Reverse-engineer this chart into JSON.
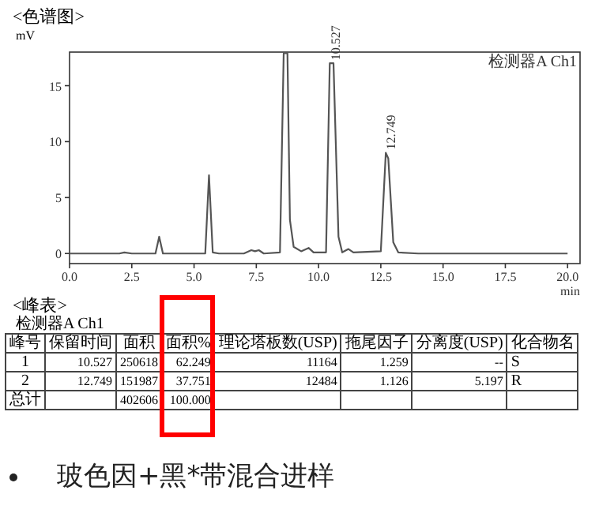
{
  "chart_data": [
    {
      "type": "line",
      "title": "<色谱图>",
      "ylabel": "mV",
      "xlabel": "min",
      "grid": false,
      "marker": "none",
      "line_style": "solid",
      "x": [
        0,
        2.0,
        2.2,
        2.5,
        3.45,
        3.6,
        3.75,
        5.45,
        5.6,
        5.75,
        6.0,
        7.0,
        7.3,
        7.45,
        7.6,
        7.8,
        8.45,
        8.6,
        8.75,
        8.85,
        9.0,
        9.3,
        9.6,
        9.8,
        10.3,
        10.45,
        10.6,
        10.8,
        10.95,
        11.2,
        11.4,
        12.5,
        12.7,
        12.8,
        13.0,
        13.2,
        14.0,
        20.0
      ],
      "series": [
        {
          "color": "#555555",
          "values": [
            0,
            0,
            0.1,
            0,
            0,
            1.5,
            0,
            0,
            7.0,
            0.1,
            0,
            0,
            0.3,
            0.2,
            0.3,
            0,
            0.1,
            17.9,
            17.9,
            3,
            0.6,
            0.2,
            0.5,
            0.1,
            0.1,
            17.0,
            17.0,
            1.5,
            0.1,
            0.4,
            0.1,
            0.2,
            9.0,
            8.5,
            1.0,
            0.1,
            0,
            0
          ]
        }
      ],
      "xlim": [
        0,
        20.5
      ],
      "ylim": [
        -0.9,
        18
      ],
      "xticks": [
        {
          "value": 0,
          "label": "0.0"
        },
        {
          "value": 2.5,
          "label": "2.5"
        },
        {
          "value": 5,
          "label": "5.0"
        },
        {
          "value": 7.5,
          "label": "7.5"
        },
        {
          "value": 10,
          "label": "10.0"
        },
        {
          "value": 12.5,
          "label": "12.5"
        },
        {
          "value": 15,
          "label": "15.0"
        },
        {
          "value": 17.5,
          "label": "17.5"
        },
        {
          "value": 20,
          "label": "20.0"
        }
      ],
      "yticks": [
        0,
        5,
        10,
        15
      ],
      "annotations": [
        "检测器A Ch1",
        {
          "text": "10.527",
          "x": 10.527,
          "y": 17.0
        },
        {
          "text": "12.749",
          "x": 12.749,
          "y": 9.0
        }
      ]
    },
    {
      "type": "other",
      "title": "<峰表>",
      "subtitle": "检测器A Ch1",
      "categories": [
        "峰号",
        "保留时间",
        "面积",
        "面积%",
        "理论塔板数(USP)",
        "拖尾因子",
        "分离度(USP)",
        "化合物名"
      ],
      "cell_labels": [
        [
          "1",
          "10.527",
          "250618",
          "62.249",
          "11164",
          "1.259",
          "--",
          "S"
        ],
        [
          "2",
          "12.749",
          "151987",
          "37.751",
          "12484",
          "1.126",
          "5.197",
          "R"
        ],
        [
          "总计",
          null,
          "402606",
          "100.000",
          null,
          null,
          null,
          null
        ]
      ],
      "annotations": [
        "玻色因+黑*带混合进样"
      ]
    }
  ]
}
